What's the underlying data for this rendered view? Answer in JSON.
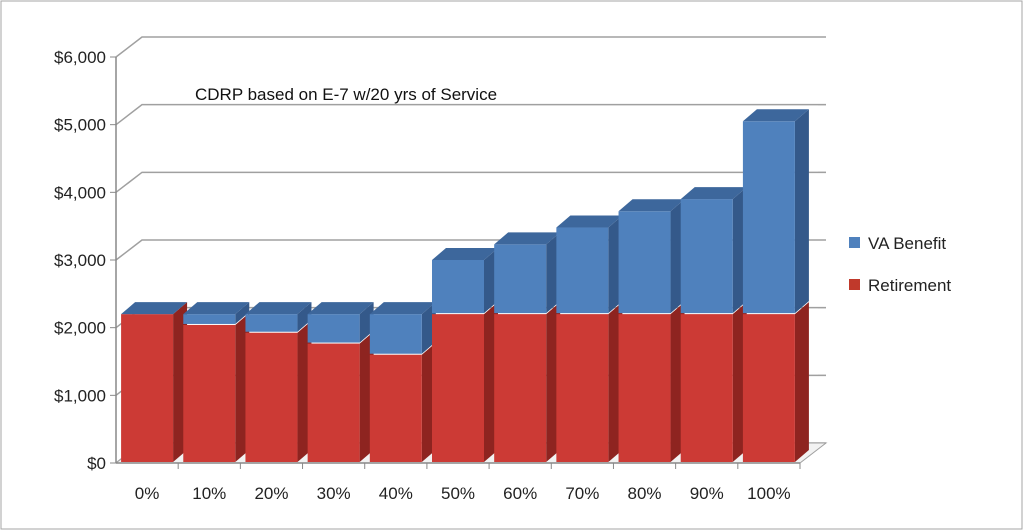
{
  "chart_data": {
    "type": "bar",
    "stacked": true,
    "three_d": true,
    "title": "CDRP based on E-7 w/20 yrs of Service",
    "xlabel": "",
    "ylabel": "",
    "categories": [
      "0%",
      "10%",
      "20%",
      "30%",
      "40%",
      "50%",
      "60%",
      "70%",
      "80%",
      "90%",
      "100%"
    ],
    "series": [
      {
        "name": "Retirement",
        "color": "#C0392B",
        "values": [
          2200,
          2040,
          1925,
          1765,
          1600,
          2200,
          2200,
          2200,
          2200,
          2200,
          2200
        ]
      },
      {
        "name": "VA Benefit",
        "color": "#4F81BD",
        "values": [
          0,
          160,
          275,
          435,
          600,
          800,
          1030,
          1280,
          1520,
          1700,
          2850
        ]
      }
    ],
    "ylim": [
      0,
      6000
    ],
    "yticks": [
      "$0",
      "$1,000",
      "$2,000",
      "$3,000",
      "$4,000",
      "$5,000",
      "$6,000"
    ],
    "grid": true,
    "legend": "right",
    "legend_order": [
      "VA Benefit",
      "Retirement"
    ]
  }
}
